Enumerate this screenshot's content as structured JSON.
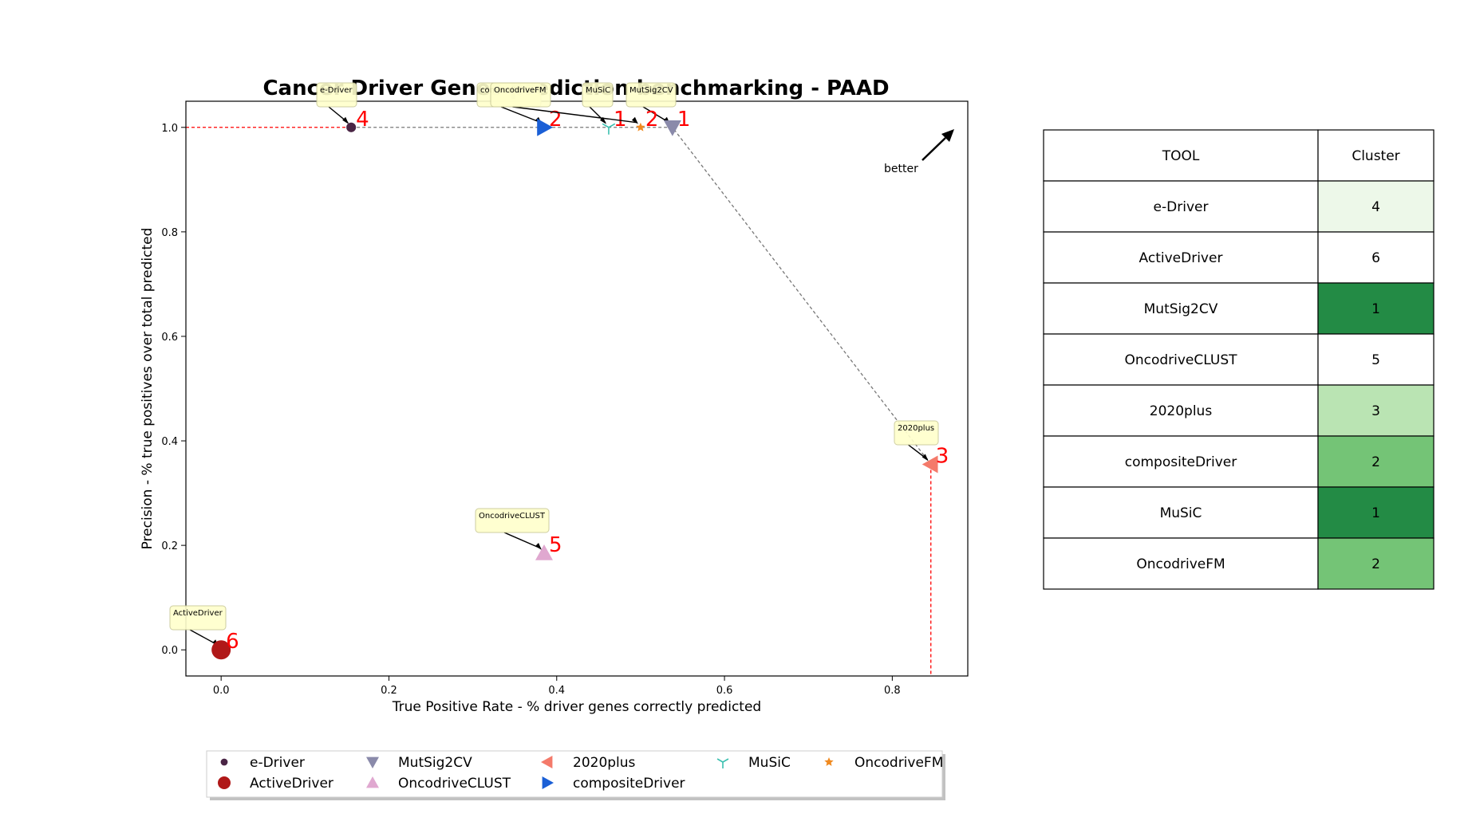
{
  "chart_data": {
    "type": "scatter",
    "title": "Cancer Driver Genes prediction benchmarking - PAAD",
    "xlabel": "True Positive Rate - % driver genes correctly predicted",
    "ylabel": "Precision - % true positives over total predicted",
    "xlim": [
      -0.042,
      0.89
    ],
    "ylim": [
      -0.05,
      1.05
    ],
    "xticks": [
      0.0,
      0.2,
      0.4,
      0.6,
      0.8
    ],
    "yticks": [
      0.0,
      0.2,
      0.4,
      0.6,
      0.8,
      1.0
    ],
    "xtick_labels": [
      "0.0",
      "0.2",
      "0.4",
      "0.6",
      "0.8"
    ],
    "ytick_labels": [
      "0.0",
      "0.2",
      "0.4",
      "0.6",
      "0.8",
      "1.0"
    ],
    "grid": false,
    "legend_placement": "bottom",
    "series": [
      {
        "name": "e-Driver",
        "x": 0.155,
        "y": 1.0,
        "cluster": "4",
        "color": "#4a2545",
        "marker": "circle-small",
        "callout": "e-Driver"
      },
      {
        "name": "ActiveDriver",
        "x": 0.0,
        "y": 0.0,
        "cluster": "6",
        "color": "#b01818",
        "marker": "circle",
        "callout": "ActiveDriver"
      },
      {
        "name": "MutSig2CV",
        "x": 0.538,
        "y": 1.0,
        "cluster": "1",
        "color": "#8a8aaa",
        "marker": "triangle-down",
        "callout": "MutSig2CV"
      },
      {
        "name": "OncodriveCLUST",
        "x": 0.385,
        "y": 0.185,
        "cluster": "5",
        "color": "#e0a8d0",
        "marker": "triangle-up",
        "callout": "OncodriveCLUST"
      },
      {
        "name": "2020plus",
        "x": 0.846,
        "y": 0.355,
        "cluster": "3",
        "color": "#f47a6a",
        "marker": "triangle-left",
        "callout": "2020plus"
      },
      {
        "name": "compositeDriver",
        "x": 0.385,
        "y": 1.0,
        "cluster": "2",
        "color": "#1a5fd6",
        "marker": "triangle-right",
        "callout": "compositeDriver"
      },
      {
        "name": "MuSiC",
        "x": 0.462,
        "y": 1.0,
        "cluster": "1",
        "color": "#3cc0b0",
        "marker": "tri-down",
        "callout": "MuSiC"
      },
      {
        "name": "OncodriveFM",
        "x": 0.5,
        "y": 1.0,
        "cluster": "2",
        "color": "#f08a20",
        "marker": "star",
        "callout": "OncodriveFM"
      }
    ],
    "pareto_front": [
      [
        0.155,
        1.0
      ],
      [
        0.538,
        1.0
      ],
      [
        0.846,
        0.355
      ]
    ],
    "annotation_better": "better"
  },
  "table": {
    "headers": [
      "TOOL",
      "Cluster"
    ],
    "rows": [
      {
        "tool": "e-Driver",
        "cluster": "4",
        "color": "#edf8e9"
      },
      {
        "tool": "ActiveDriver",
        "cluster": "6",
        "color": "#ffffff"
      },
      {
        "tool": "MutSig2CV",
        "cluster": "1",
        "color": "#238b45"
      },
      {
        "tool": "OncodriveCLUST",
        "cluster": "5",
        "color": "#ffffff"
      },
      {
        "tool": "2020plus",
        "cluster": "3",
        "color": "#bae4b3"
      },
      {
        "tool": "compositeDriver",
        "cluster": "2",
        "color": "#74c476"
      },
      {
        "tool": "MuSiC",
        "cluster": "1",
        "color": "#238b45"
      },
      {
        "tool": "OncodriveFM",
        "cluster": "2",
        "color": "#74c476"
      }
    ]
  }
}
